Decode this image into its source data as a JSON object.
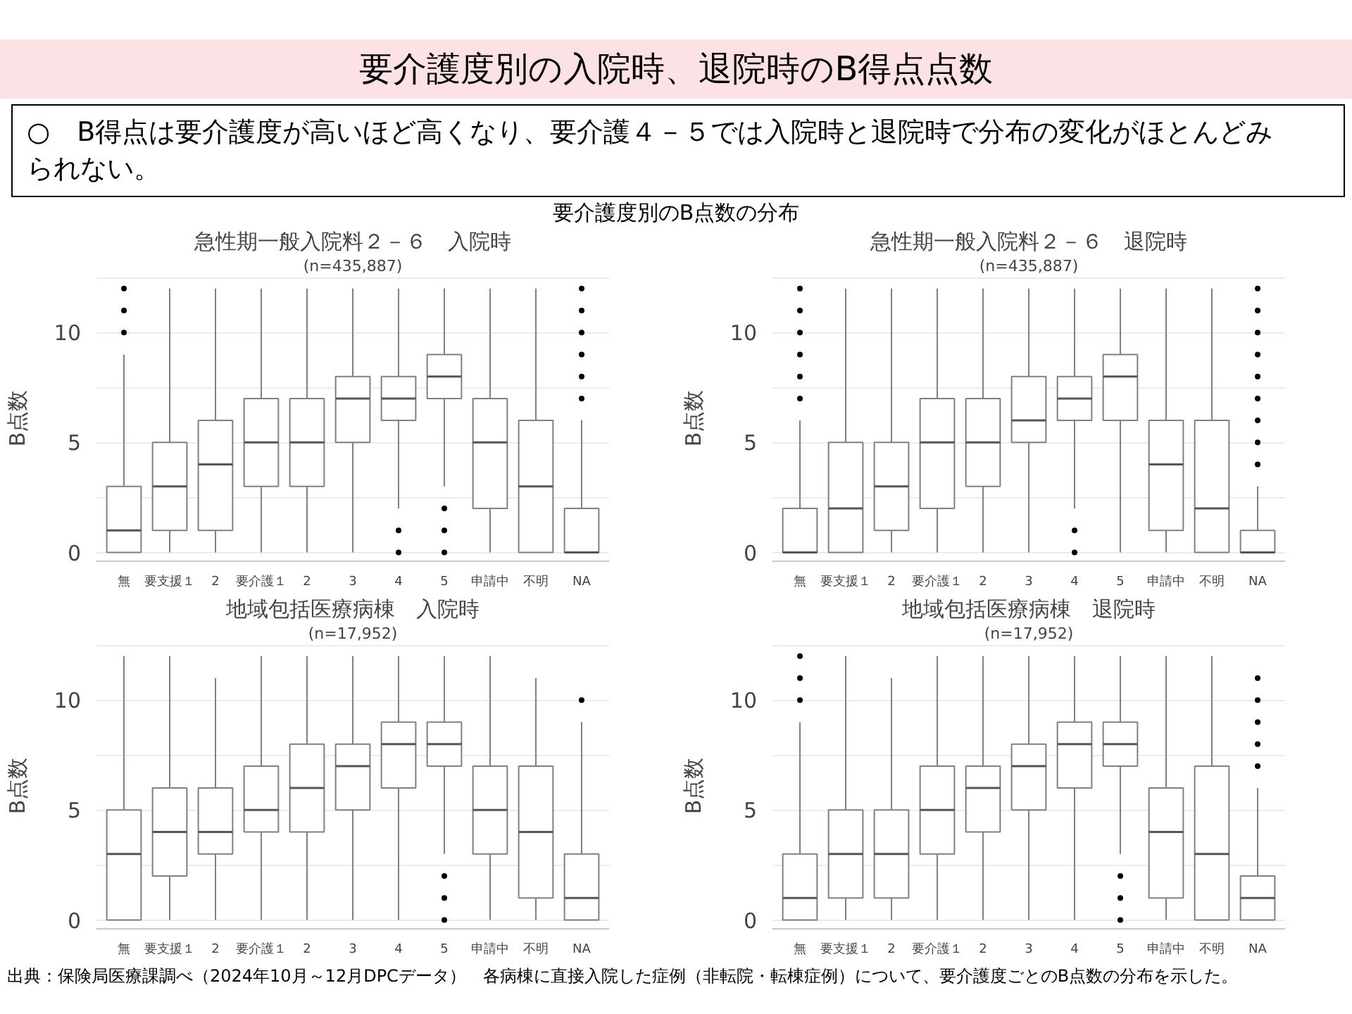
{
  "chart_data": [
    {
      "type": "other",
      "title": "要介護度別の入院時、退院時のB得点点数",
      "subtitle": "要介護度別のB点数の分布",
      "annotations": [
        "○　B得点は要介護度が高いほど高くなり、要介護４－５では入院時と退院時で分布の変化がほとんどみられない。",
        "出典：保険局医療課調べ（2024年10月～12月DPCデータ）　各病棟に直接入院した症例（非転院・転棟症例）について、要介護度ごとのB点数の分布を示した。"
      ]
    },
    {
      "type": "box",
      "title": "急性期一般入院料２－６　入院時",
      "subtitle": "(n=435,887)",
      "ylabel": "B点数",
      "categories": [
        "無",
        "要支援１",
        "2",
        "要介護１",
        "2",
        "3",
        "4",
        "5",
        "申請中",
        "不明",
        "NA"
      ],
      "ylim": [
        -0.4,
        12.6
      ],
      "yticks": [
        0,
        {
          "value": 2.5,
          "label": null
        },
        5,
        {
          "value": 7.5,
          "label": null
        },
        10,
        {
          "value": 12.5,
          "label": null
        }
      ],
      "grid": "y",
      "series": [
        {
          "color": "#808080",
          "boxes": [
            {
              "low": 0,
              "q1": 0,
              "median": 1,
              "q3": 3,
              "high": 9,
              "outliers": [
                10,
                11,
                12
              ]
            },
            {
              "low": 0,
              "q1": 1,
              "median": 3,
              "q3": 5,
              "high": 12
            },
            {
              "low": 0,
              "q1": 1,
              "median": 4,
              "q3": 6,
              "high": 12
            },
            {
              "low": 0,
              "q1": 3,
              "median": 5,
              "q3": 7,
              "high": 12
            },
            {
              "low": 0,
              "q1": 3,
              "median": 5,
              "q3": 7,
              "high": 12
            },
            {
              "low": 0,
              "q1": 5,
              "median": 7,
              "q3": 8,
              "high": 12
            },
            {
              "low": 2,
              "q1": 6,
              "median": 7,
              "q3": 8,
              "high": 12,
              "outliers": [
                0,
                1
              ]
            },
            {
              "low": 3,
              "q1": 7,
              "median": 8,
              "q3": 9,
              "high": 12,
              "outliers": [
                0,
                1,
                2
              ]
            },
            {
              "low": 0,
              "q1": 2,
              "median": 5,
              "q3": 7,
              "high": 12
            },
            {
              "low": 0,
              "q1": 0,
              "median": 3,
              "q3": 6,
              "high": 12
            },
            {
              "low": 0,
              "q1": 0,
              "median": 0,
              "q3": 2,
              "high": 6,
              "outliers": [
                7,
                8,
                9,
                10,
                11,
                12
              ]
            }
          ]
        }
      ]
    },
    {
      "type": "box",
      "title": "急性期一般入院料２－６　退院時",
      "subtitle": "(n=435,887)",
      "ylabel": "B点数",
      "categories": [
        "無",
        "要支援１",
        "2",
        "要介護１",
        "2",
        "3",
        "4",
        "5",
        "申請中",
        "不明",
        "NA"
      ],
      "ylim": [
        -0.4,
        12.6
      ],
      "yticks": [
        0,
        {
          "value": 2.5,
          "label": null
        },
        5,
        {
          "value": 7.5,
          "label": null
        },
        10,
        {
          "value": 12.5,
          "label": null
        }
      ],
      "grid": "y",
      "series": [
        {
          "color": "#808080",
          "boxes": [
            {
              "low": 0,
              "q1": 0,
              "median": 0,
              "q3": 2,
              "high": 6,
              "outliers": [
                7,
                8,
                9,
                10,
                11,
                12
              ]
            },
            {
              "low": 0,
              "q1": 0,
              "median": 2,
              "q3": 5,
              "high": 12
            },
            {
              "low": 0,
              "q1": 1,
              "median": 3,
              "q3": 5,
              "high": 12
            },
            {
              "low": 0,
              "q1": 2,
              "median": 5,
              "q3": 7,
              "high": 12
            },
            {
              "low": 0,
              "q1": 3,
              "median": 5,
              "q3": 7,
              "high": 12
            },
            {
              "low": 0,
              "q1": 5,
              "median": 6,
              "q3": 8,
              "high": 12
            },
            {
              "low": 2,
              "q1": 6,
              "median": 7,
              "q3": 8,
              "high": 12,
              "outliers": [
                0,
                1
              ]
            },
            {
              "low": 0,
              "q1": 6,
              "median": 8,
              "q3": 9,
              "high": 12
            },
            {
              "low": 0,
              "q1": 1,
              "median": 4,
              "q3": 6,
              "high": 12
            },
            {
              "low": 0,
              "q1": 0,
              "median": 2,
              "q3": 6,
              "high": 12
            },
            {
              "low": 0,
              "q1": 0,
              "median": 0,
              "q3": 1,
              "high": 3,
              "outliers": [
                4,
                5,
                6,
                7,
                8,
                9,
                10,
                11,
                12
              ]
            }
          ]
        }
      ]
    },
    {
      "type": "box",
      "title": "地域包括医療病棟　入院時",
      "subtitle": "(n=17,952)",
      "ylabel": "B点数",
      "categories": [
        "無",
        "要支援１",
        "2",
        "要介護１",
        "2",
        "3",
        "4",
        "5",
        "申請中",
        "不明",
        "NA"
      ],
      "ylim": [
        -0.4,
        12.6
      ],
      "yticks": [
        0,
        {
          "value": 2.5,
          "label": null
        },
        5,
        {
          "value": 7.5,
          "label": null
        },
        10,
        {
          "value": 12.5,
          "label": null
        }
      ],
      "grid": "y",
      "series": [
        {
          "color": "#808080",
          "boxes": [
            {
              "low": 0,
              "q1": 0,
              "median": 3,
              "q3": 5,
              "high": 12
            },
            {
              "low": 0,
              "q1": 2,
              "median": 4,
              "q3": 6,
              "high": 12
            },
            {
              "low": 0,
              "q1": 3,
              "median": 4,
              "q3": 6,
              "high": 11
            },
            {
              "low": 0,
              "q1": 4,
              "median": 5,
              "q3": 7,
              "high": 12
            },
            {
              "low": 0,
              "q1": 4,
              "median": 6,
              "q3": 8,
              "high": 12
            },
            {
              "low": 0,
              "q1": 5,
              "median": 7,
              "q3": 8,
              "high": 12
            },
            {
              "low": 0,
              "q1": 6,
              "median": 8,
              "q3": 9,
              "high": 12
            },
            {
              "low": 3,
              "q1": 7,
              "median": 8,
              "q3": 9,
              "high": 12,
              "outliers": [
                0,
                1,
                2
              ]
            },
            {
              "low": 0,
              "q1": 3,
              "median": 5,
              "q3": 7,
              "high": 12
            },
            {
              "low": 0,
              "q1": 1,
              "median": 4,
              "q3": 7,
              "high": 11
            },
            {
              "low": 0,
              "q1": 0,
              "median": 1,
              "q3": 3,
              "high": 9,
              "outliers": [
                10
              ]
            }
          ]
        }
      ]
    },
    {
      "type": "box",
      "title": "地域包括医療病棟　退院時",
      "subtitle": "(n=17,952)",
      "ylabel": "B点数",
      "categories": [
        "無",
        "要支援１",
        "2",
        "要介護１",
        "2",
        "3",
        "4",
        "5",
        "申請中",
        "不明",
        "NA"
      ],
      "ylim": [
        -0.4,
        12.6
      ],
      "yticks": [
        0,
        {
          "value": 2.5,
          "label": null
        },
        5,
        {
          "value": 7.5,
          "label": null
        },
        10,
        {
          "value": 12.5,
          "label": null
        }
      ],
      "grid": "y",
      "series": [
        {
          "color": "#808080",
          "boxes": [
            {
              "low": 0,
              "q1": 0,
              "median": 1,
              "q3": 3,
              "high": 9,
              "outliers": [
                10,
                11,
                12
              ]
            },
            {
              "low": 0,
              "q1": 1,
              "median": 3,
              "q3": 5,
              "high": 12
            },
            {
              "low": 0,
              "q1": 1,
              "median": 3,
              "q3": 5,
              "high": 11
            },
            {
              "low": 0,
              "q1": 3,
              "median": 5,
              "q3": 7,
              "high": 12
            },
            {
              "low": 0,
              "q1": 4,
              "median": 6,
              "q3": 7,
              "high": 12
            },
            {
              "low": 0,
              "q1": 5,
              "median": 7,
              "q3": 8,
              "high": 12
            },
            {
              "low": 0,
              "q1": 6,
              "median": 8,
              "q3": 9,
              "high": 12
            },
            {
              "low": 3,
              "q1": 7,
              "median": 8,
              "q3": 9,
              "high": 12,
              "outliers": [
                0,
                1,
                2
              ]
            },
            {
              "low": 0,
              "q1": 1,
              "median": 4,
              "q3": 6,
              "high": 12
            },
            {
              "low": 0,
              "q1": 0,
              "median": 3,
              "q3": 7,
              "high": 12
            },
            {
              "low": 0,
              "q1": 0,
              "median": 1,
              "q3": 2,
              "high": 6,
              "outliers": [
                7,
                8,
                9,
                10,
                11
              ]
            }
          ]
        }
      ]
    }
  ]
}
